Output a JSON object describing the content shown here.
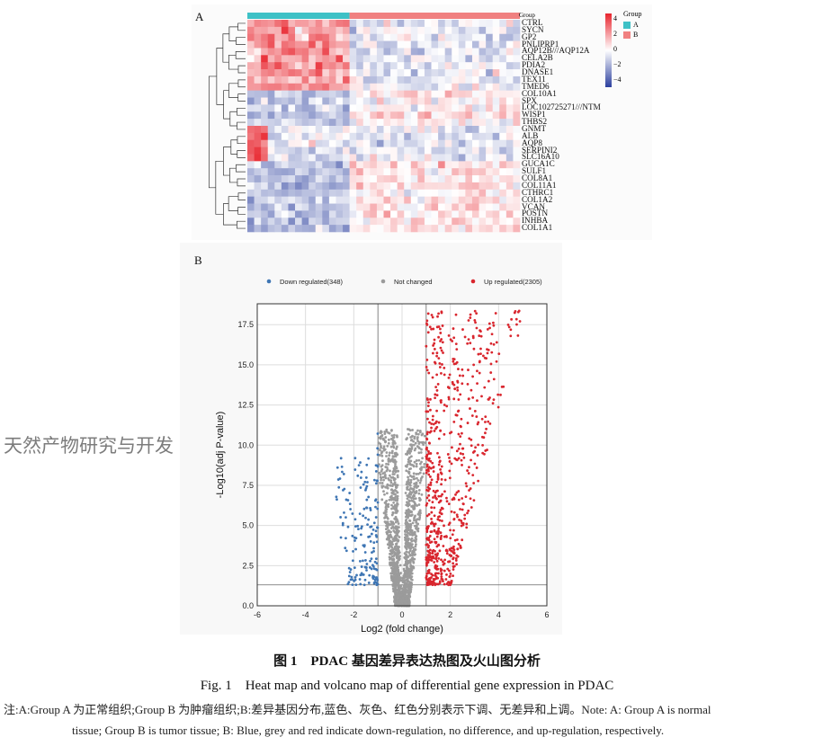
{
  "panel_a": {
    "label": "A",
    "group_title": "Group",
    "groups": [
      {
        "name": "A",
        "color": "#3ec1c6"
      },
      {
        "name": "B",
        "color": "#f08080"
      }
    ],
    "scale_ticks": [
      "4",
      "2",
      "0",
      "−2",
      "−4"
    ],
    "genes": [
      "CTRL",
      "SYCN",
      "GP2",
      "PNLIPRP1",
      "AQP12B///AQP12A",
      "CELA2B",
      "PDIA2",
      "DNASE1",
      "TEX11",
      "TMED6",
      "COL10A1",
      "SPX",
      "LOC102725271///NTM",
      "WISP1",
      "THBS2",
      "GNMT",
      "ALB",
      "AQP8",
      "SERPINI2",
      "SLC16A10",
      "GUCA1C",
      "SULF1",
      "COL8A1",
      "COL11A1",
      "CTHRC1",
      "COL1A2",
      "VCAN",
      "POSTN",
      "INHBA",
      "COL1A1"
    ],
    "colors": {
      "high": "#e8242d",
      "mid": "#ffffff",
      "low": "#2b3f9e"
    }
  },
  "panel_b": {
    "label": "B",
    "chart_data": {
      "type": "scatter",
      "title": "",
      "xlabel": "Log2 (fold change)",
      "ylabel": "-Log10(adj P-value)",
      "xlim": [
        -6,
        6
      ],
      "ylim": [
        0,
        18.8
      ],
      "xticks": [
        "-6",
        "-4",
        "-2",
        "0",
        "2",
        "4",
        "6"
      ],
      "xtick_values": [
        -6,
        -4,
        -2,
        0,
        2,
        4,
        6
      ],
      "yticks": [
        "0.0",
        "2.5",
        "5.0",
        "7.5",
        "10.0",
        "12.5",
        "15.0",
        "17.5"
      ],
      "ytick_values": [
        0,
        2.5,
        5,
        7.5,
        10,
        12.5,
        15,
        17.5
      ],
      "grid": true,
      "legend_position": "top",
      "thresholds": {
        "log2fc": [
          -1,
          1
        ],
        "neg_log10_p": 1.3
      },
      "series": [
        {
          "name": "Down regulated(348)",
          "count": 348,
          "color": "#3f76b4"
        },
        {
          "name": "Not changed",
          "color": "#9b9b9b"
        },
        {
          "name": "Up regulated(2305)",
          "count": 2305,
          "color": "#d9262e"
        }
      ]
    }
  },
  "caption": {
    "zh": "图 1　PDAC 基因差异表达热图及火山图分析",
    "en": "Fig. 1　Heat map and volcano map of differential gene expression in PDAC",
    "note_line1": "注:A:Group A 为正常组织;Group B 为肿瘤组织;B:差异基因分布,蓝色、灰色、红色分别表示下调、无差异和上调。Note: A: Group A is normal",
    "note_line2": "tissue; Group B is tumor tissue; B: Blue, grey and red indicate down-regulation, no difference, and up-regulation, respectively.",
    "watermark": "天然产物研究与开发"
  }
}
